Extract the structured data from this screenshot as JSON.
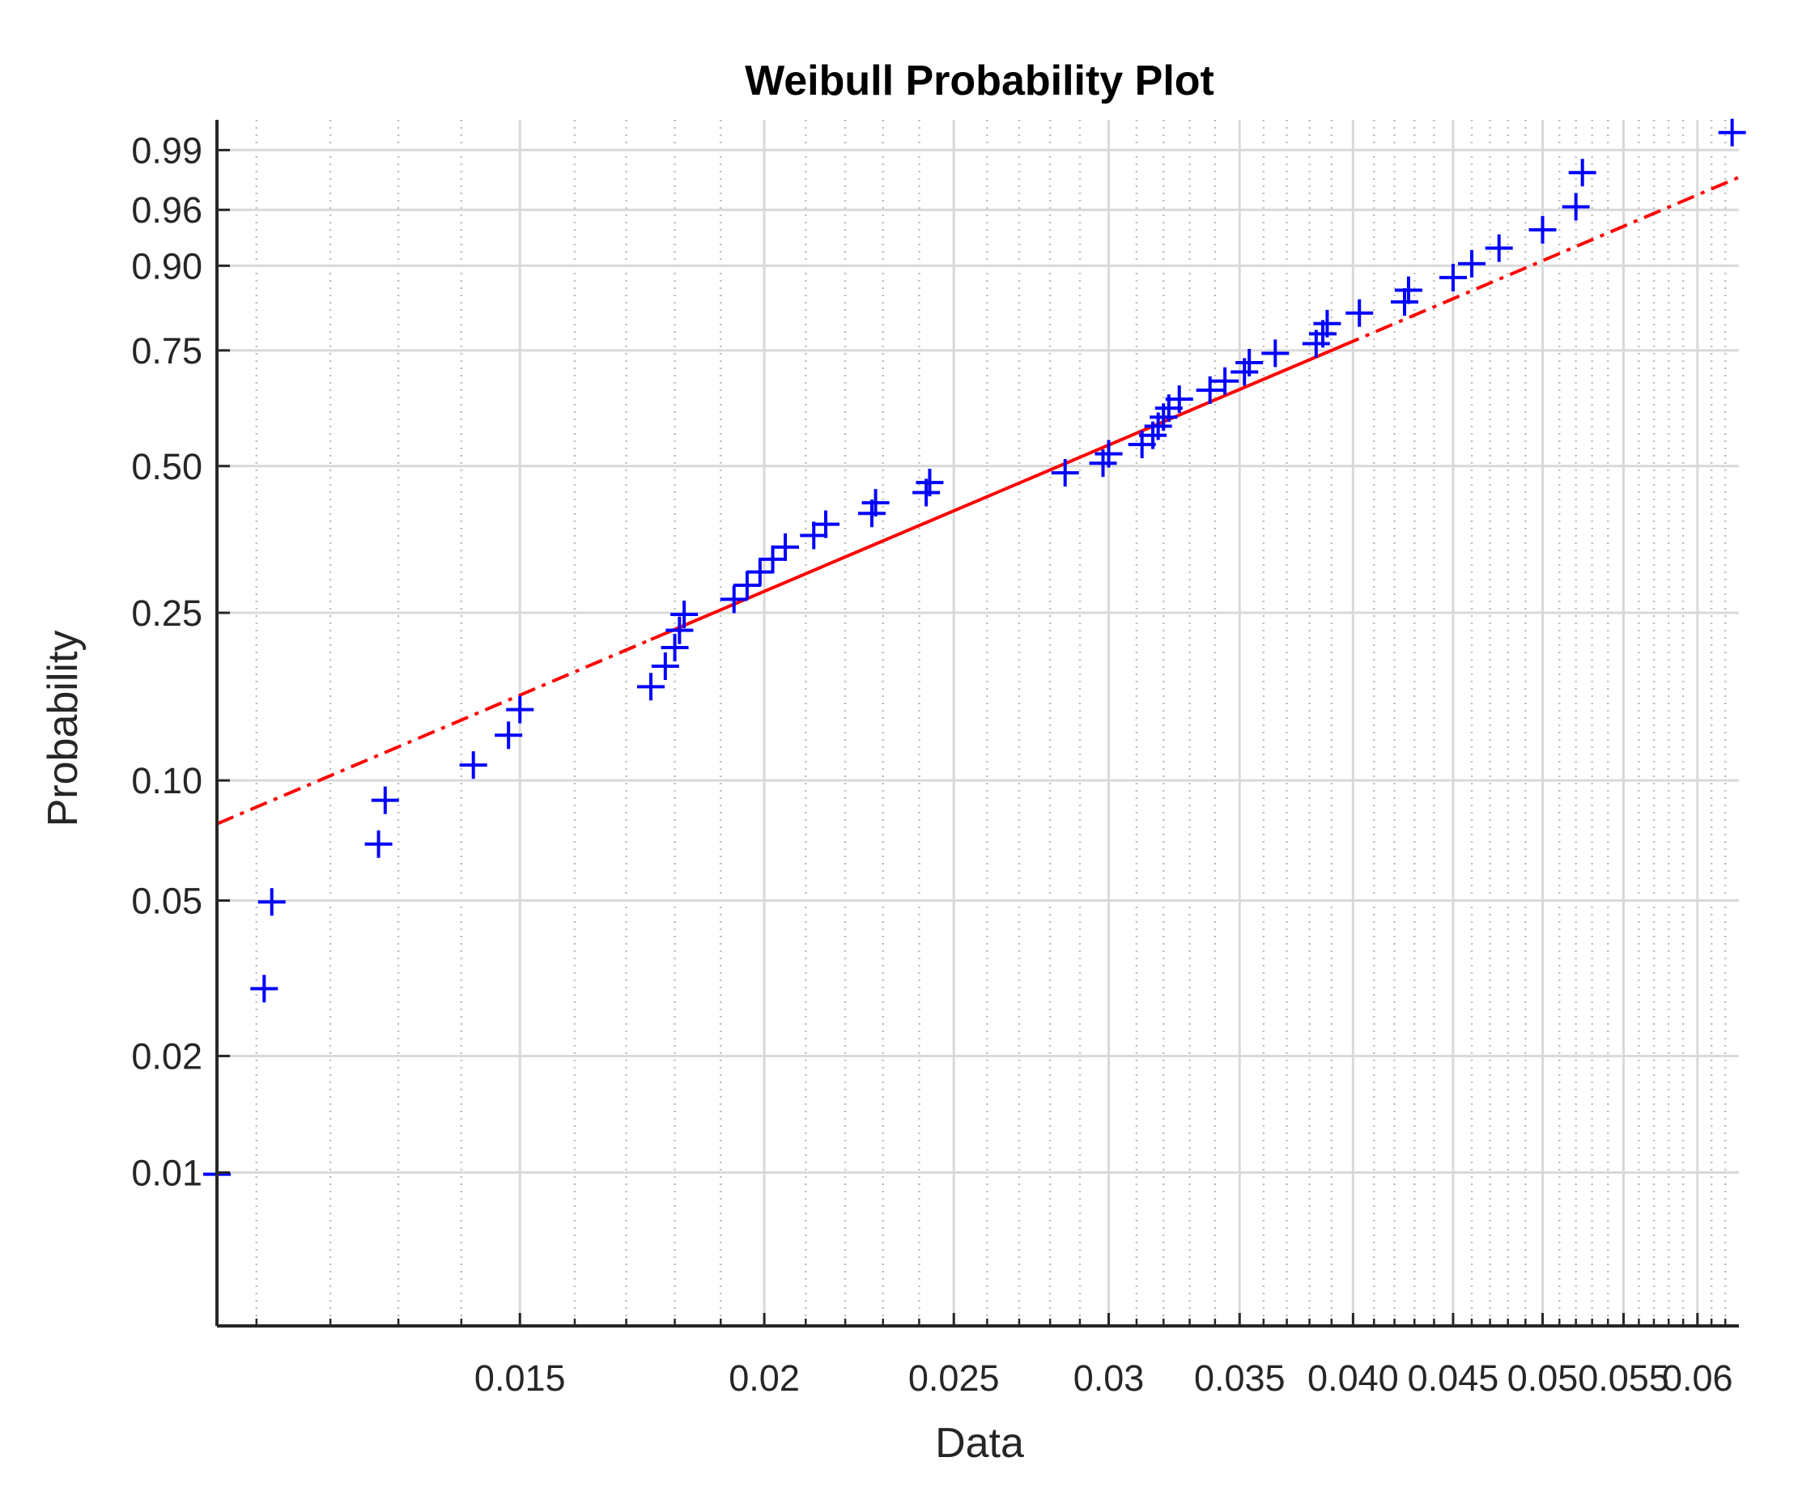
{
  "chart_data": {
    "type": "scatter",
    "title": "Weibull Probability Plot",
    "xlabel": "Data",
    "ylabel": "Probability",
    "x_scale": "log",
    "y_scale": "weibull",
    "xlim": [
      0.0105,
      0.063
    ],
    "ylim": [
      0.004,
      0.996
    ],
    "grid": true,
    "x_ticks": [
      0.015,
      0.02,
      0.025,
      0.03,
      0.035,
      0.04,
      0.045,
      0.05,
      0.055,
      0.06
    ],
    "x_tick_labels": [
      "0.015",
      "0.02",
      "0.025",
      "0.03",
      "0.035",
      "0.040",
      "0.045",
      "0.05",
      "0.055",
      "0.06"
    ],
    "y_ticks": [
      0.01,
      0.02,
      0.05,
      0.1,
      0.25,
      0.5,
      0.75,
      0.9,
      0.96,
      0.99
    ],
    "y_tick_labels": [
      "0.01",
      "0.02",
      "0.05",
      "0.10",
      "0.25",
      "0.50",
      "0.75",
      "0.90",
      "0.96",
      "0.99"
    ],
    "colors": {
      "data": "#0000ff",
      "fit": "#ff0000",
      "axis": "#262626",
      "grid": "#d9d9d9"
    },
    "series": [
      {
        "marker": "plus",
        "x": [
          0.0105,
          0.0111,
          0.0112,
          0.0127,
          0.0128,
          0.0142,
          0.0148,
          0.015,
          0.0175,
          0.0178,
          0.018,
          0.0181,
          0.0182,
          0.0193,
          0.0196,
          0.0199,
          0.0202,
          0.0205,
          0.0212,
          0.0215,
          0.0227,
          0.0228,
          0.0242,
          0.0243,
          0.0285,
          0.0298,
          0.03,
          0.0312,
          0.0316,
          0.0318,
          0.032,
          0.0322,
          0.0326,
          0.0338,
          0.0344,
          0.0352,
          0.0354,
          0.0365,
          0.0383,
          0.0386,
          0.0388,
          0.0403,
          0.0425,
          0.0427,
          0.045,
          0.046,
          0.0475,
          0.05,
          0.052,
          0.0524,
          0.0625
        ],
        "y": [
          0.0099,
          0.0298,
          0.0496,
          0.0694,
          0.0893,
          0.1091,
          0.129,
          0.1488,
          0.1687,
          0.1885,
          0.2083,
          0.2282,
          0.248,
          0.2679,
          0.2877,
          0.3075,
          0.3274,
          0.3472,
          0.3671,
          0.3869,
          0.4067,
          0.4266,
          0.4464,
          0.4663,
          0.4861,
          0.506,
          0.5258,
          0.5456,
          0.5655,
          0.5853,
          0.6052,
          0.625,
          0.6448,
          0.6647,
          0.6845,
          0.7044,
          0.7242,
          0.744,
          0.7639,
          0.7837,
          0.8036,
          0.8234,
          0.8433,
          0.8631,
          0.8829,
          0.9028,
          0.9226,
          0.9425,
          0.9623,
          0.9821,
          0.994
        ]
      }
    ],
    "fit_line": {
      "style": "dash-dot outside data, solid inside",
      "x": [
        0.0105,
        0.063
      ],
      "y": [
        0.078,
        0.98
      ],
      "solid_range": [
        0.0175,
        0.0395
      ]
    }
  }
}
